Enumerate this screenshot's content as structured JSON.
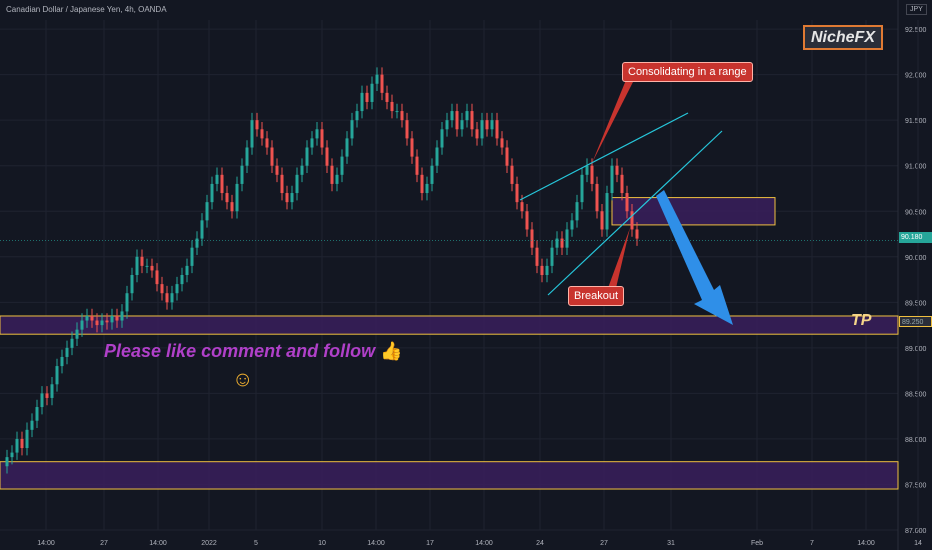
{
  "header": {
    "title": "Canadian Dollar / Japanese Yen, 4h, OANDA",
    "currency": "JPY"
  },
  "branding": {
    "label": "NicheFX"
  },
  "annotations": {
    "consolidating": "Consolidating in a range",
    "breakout": "Breakout",
    "tp": "TP",
    "promo": "Please like comment and follow",
    "thumb": "👍",
    "smile": "☺"
  },
  "price_badges": {
    "current": "90.180",
    "tp_level": "89.250"
  },
  "colors": {
    "up": "#26a69a",
    "down": "#ef5350",
    "zone_fill": "#3a1f5c",
    "zone_border": "#f0c040",
    "trendline": "#26c6da",
    "arrow": "#2f8fe8"
  },
  "chart_data": {
    "type": "candlestick",
    "title": "Canadian Dollar / Japanese Yen, 4h, OANDA",
    "y_axis": {
      "ylim": [
        87.0,
        92.6
      ],
      "ticks": [
        "92.500",
        "92.000",
        "91.500",
        "91.000",
        "90.500",
        "90.000",
        "89.500",
        "89.000",
        "88.500",
        "88.000",
        "87.500",
        "87.000"
      ]
    },
    "x_axis": {
      "ticks": [
        "14:00",
        "27",
        "14:00",
        "2022",
        "5",
        "10",
        "14:00",
        "17",
        "14:00",
        "24",
        "27",
        "31",
        "Feb",
        "7",
        "14:00",
        "14"
      ]
    },
    "closes": [
      87.8,
      87.85,
      88.0,
      87.9,
      88.1,
      88.2,
      88.35,
      88.5,
      88.45,
      88.6,
      88.8,
      88.9,
      89.0,
      89.1,
      89.2,
      89.3,
      89.35,
      89.3,
      89.25,
      89.3,
      89.28,
      89.35,
      89.3,
      89.4,
      89.6,
      89.8,
      90.0,
      89.9,
      89.9,
      89.85,
      89.7,
      89.6,
      89.5,
      89.6,
      89.7,
      89.8,
      89.9,
      90.1,
      90.2,
      90.4,
      90.6,
      90.8,
      90.9,
      90.7,
      90.6,
      90.5,
      90.8,
      91.0,
      91.2,
      91.5,
      91.4,
      91.3,
      91.2,
      91.0,
      90.9,
      90.7,
      90.6,
      90.7,
      90.9,
      91.0,
      91.2,
      91.3,
      91.4,
      91.2,
      91.0,
      90.8,
      90.9,
      91.1,
      91.3,
      91.5,
      91.6,
      91.8,
      91.7,
      91.9,
      92.0,
      91.8,
      91.7,
      91.6,
      91.6,
      91.5,
      91.3,
      91.1,
      90.9,
      90.7,
      90.8,
      91.0,
      91.2,
      91.4,
      91.5,
      91.6,
      91.4,
      91.5,
      91.6,
      91.4,
      91.3,
      91.5,
      91.4,
      91.5,
      91.3,
      91.2,
      91.0,
      90.8,
      90.6,
      90.5,
      90.3,
      90.1,
      89.9,
      89.8,
      89.9,
      90.1,
      90.2,
      90.1,
      90.3,
      90.4,
      90.6,
      90.9,
      91.0,
      90.8,
      90.5,
      90.3,
      90.7,
      91.0,
      90.9,
      90.7,
      90.5,
      90.3,
      90.2
    ]
  }
}
